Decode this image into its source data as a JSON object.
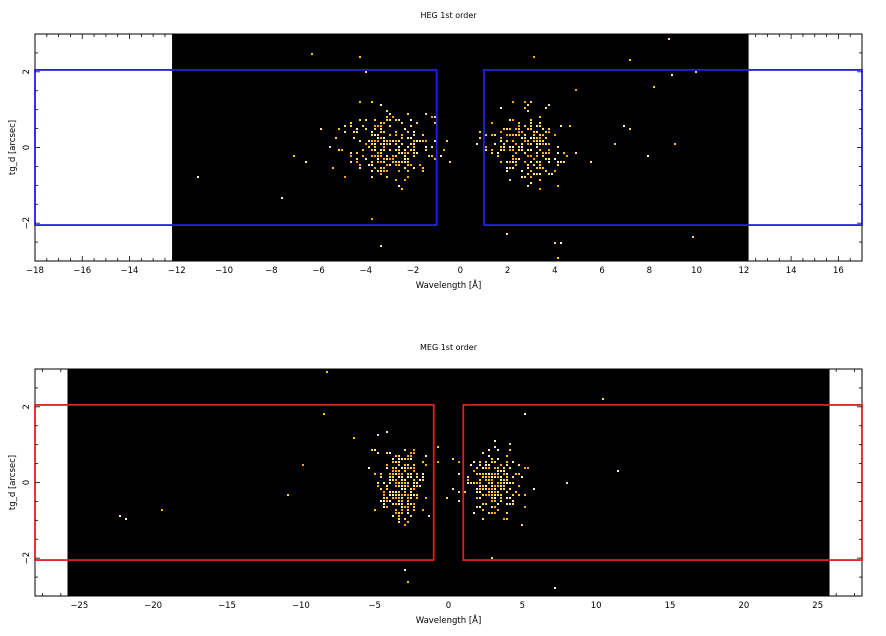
{
  "chart_data": [
    {
      "type": "heatmap",
      "title": "HEG 1st order",
      "xlabel": "Wavelength [Å]",
      "ylabel": "tg_d [arcsec]",
      "xlim": [
        -18,
        17
      ],
      "ylim": [
        -3,
        3
      ],
      "xticks": [
        -18,
        -16,
        -14,
        -12,
        -10,
        -8,
        -6,
        -4,
        -2,
        0,
        2,
        4,
        6,
        8,
        10,
        12,
        14,
        16
      ],
      "yticks": [
        -2,
        0,
        2
      ],
      "data_extent_x": [
        -12.2,
        12.2
      ],
      "region_color": "#1f1fe6",
      "regions": [
        {
          "x": [
            -18,
            -1.0
          ],
          "y": [
            -2.05,
            2.05
          ]
        },
        {
          "x": [
            1.0,
            17
          ],
          "y": [
            -2.05,
            2.05
          ]
        }
      ],
      "clusters": [
        {
          "x_center": -3.0,
          "x_spread": 1.3,
          "y_spread": 0.55,
          "count": 240
        },
        {
          "x_center": 2.8,
          "x_spread": 1.1,
          "y_spread": 0.55,
          "count": 210
        }
      ],
      "outliers": [
        {
          "x": -6.3,
          "y": 2.5
        },
        {
          "x": -4.3,
          "y": 2.4
        },
        {
          "x": -4.0,
          "y": 2.0
        },
        {
          "x": -11.1,
          "y": -0.75
        },
        {
          "x": -7.5,
          "y": -1.3
        },
        {
          "x": -3.8,
          "y": -1.9
        },
        {
          "x": -3.3,
          "y": -2.6
        },
        {
          "x": -5.9,
          "y": 0.5
        },
        {
          "x": -7.0,
          "y": -0.2
        },
        {
          "x": 3.1,
          "y": 2.4
        },
        {
          "x": 7.2,
          "y": 2.3
        },
        {
          "x": 8.8,
          "y": 2.85
        },
        {
          "x": 9.0,
          "y": 1.9
        },
        {
          "x": 10.0,
          "y": 2.0
        },
        {
          "x": 8.2,
          "y": 1.6
        },
        {
          "x": 9.1,
          "y": 0.1
        },
        {
          "x": 8.0,
          "y": -0.2
        },
        {
          "x": 7.2,
          "y": 0.5
        },
        {
          "x": 6.9,
          "y": 0.6
        },
        {
          "x": 5.5,
          "y": -0.4
        },
        {
          "x": 6.6,
          "y": 0.1
        },
        {
          "x": 4.0,
          "y": -2.5
        },
        {
          "x": 4.3,
          "y": -2.5
        },
        {
          "x": 4.1,
          "y": -2.9
        },
        {
          "x": 9.8,
          "y": -2.4
        },
        {
          "x": 2.0,
          "y": -2.3
        }
      ]
    },
    {
      "type": "heatmap",
      "title": "MEG 1st order",
      "xlabel": "Wavelength [Å]",
      "ylabel": "tg_d [arcsec]",
      "xlim": [
        -28,
        28
      ],
      "ylim": [
        -3,
        3
      ],
      "xticks": [
        -25,
        -20,
        -15,
        -10,
        -5,
        0,
        5,
        10,
        15,
        20,
        25
      ],
      "yticks": [
        -2,
        0,
        2
      ],
      "data_extent_x": [
        -25.8,
        25.8
      ],
      "region_color": "#e02020",
      "regions": [
        {
          "x": [
            -28,
            -1.0
          ],
          "y": [
            -2.05,
            2.05
          ]
        },
        {
          "x": [
            1.0,
            28
          ],
          "y": [
            -2.05,
            2.05
          ]
        }
      ],
      "clusters": [
        {
          "x_center": -3.2,
          "x_spread": 1.1,
          "y_spread": 0.6,
          "count": 230
        },
        {
          "x_center": 3.0,
          "x_spread": 1.3,
          "y_spread": 0.5,
          "count": 230
        }
      ],
      "outliers": [
        {
          "x": -8.2,
          "y": 2.9
        },
        {
          "x": -8.4,
          "y": 1.8
        },
        {
          "x": -9.9,
          "y": 0.5
        },
        {
          "x": -10.8,
          "y": -0.3
        },
        {
          "x": -19.4,
          "y": -0.7
        },
        {
          "x": -21.8,
          "y": -1.0
        },
        {
          "x": -22.3,
          "y": -0.9
        },
        {
          "x": -3.0,
          "y": -2.3
        },
        {
          "x": -2.8,
          "y": -2.6
        },
        {
          "x": -6.3,
          "y": 1.2
        },
        {
          "x": 10.5,
          "y": 2.2
        },
        {
          "x": 5.1,
          "y": 1.8
        },
        {
          "x": 11.4,
          "y": 0.3
        },
        {
          "x": 8.1,
          "y": 0.0
        },
        {
          "x": 7.3,
          "y": -2.8
        },
        {
          "x": 2.9,
          "y": -2.0
        }
      ]
    }
  ]
}
